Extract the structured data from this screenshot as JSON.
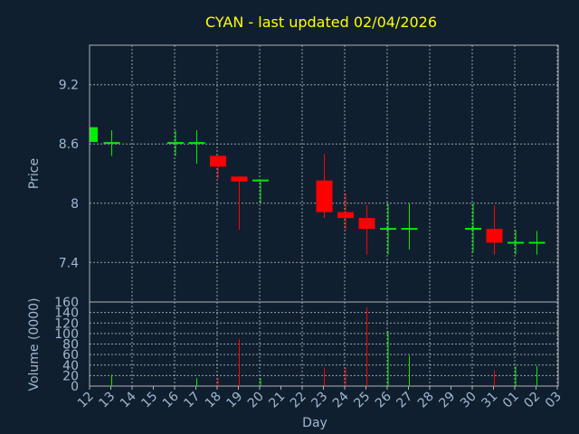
{
  "chart_data": {
    "type": "candlestick",
    "title": "CYAN - last updated 02/04/2026",
    "xlabel": "Day",
    "ylabel_price": "Price",
    "ylabel_volume": "Volume (0000)",
    "price_ylim": [
      7.0,
      9.6
    ],
    "price_ticks": [
      "9.2",
      "8.6",
      "8",
      "7.4"
    ],
    "volume_ylim": [
      0,
      160
    ],
    "volume_ticks": [
      "160",
      "140",
      "120",
      "100",
      "80",
      "60",
      "40",
      "20",
      "0"
    ],
    "x_ticks": [
      "12",
      "13",
      "14",
      "15",
      "16",
      "17",
      "18",
      "19",
      "20",
      "21",
      "22",
      "23",
      "24",
      "25",
      "26",
      "27",
      "28",
      "29",
      "30",
      "31",
      "01",
      "02",
      "03"
    ],
    "grid": true,
    "colors": {
      "background": "#0f1f30",
      "up": "#00ee00",
      "down": "#ff0000",
      "text": "#a0b8d0",
      "title": "#ffff00",
      "grid": "#c0c0c0"
    },
    "candles": [
      {
        "x": "12",
        "open": 8.62,
        "close": 8.77,
        "high": 8.77,
        "low": 8.62,
        "volume": 0
      },
      {
        "x": "13",
        "open": 8.61,
        "close": 8.61,
        "high": 8.74,
        "low": 8.48,
        "volume": 22
      },
      {
        "x": "16",
        "open": 8.61,
        "close": 8.61,
        "high": 8.74,
        "low": 8.48,
        "volume": 0
      },
      {
        "x": "17",
        "open": 8.61,
        "close": 8.61,
        "high": 8.74,
        "low": 8.4,
        "volume": 15
      },
      {
        "x": "18",
        "open": 8.48,
        "close": 8.37,
        "high": 8.48,
        "low": 8.25,
        "volume": 15
      },
      {
        "x": "19",
        "open": 8.27,
        "close": 8.22,
        "high": 8.27,
        "low": 7.73,
        "volume": 90
      },
      {
        "x": "20",
        "open": 8.23,
        "close": 8.23,
        "high": 8.23,
        "low": 8.0,
        "volume": 15
      },
      {
        "x": "23",
        "open": 8.23,
        "close": 7.91,
        "high": 8.5,
        "low": 7.85,
        "volume": 35
      },
      {
        "x": "24",
        "open": 7.91,
        "close": 7.85,
        "high": 8.1,
        "low": 7.73,
        "volume": 35
      },
      {
        "x": "25",
        "open": 7.85,
        "close": 7.74,
        "high": 7.98,
        "low": 7.48,
        "volume": 150
      },
      {
        "x": "26",
        "open": 7.74,
        "close": 7.74,
        "high": 8.0,
        "low": 7.48,
        "volume": 105
      },
      {
        "x": "27",
        "open": 7.74,
        "close": 7.74,
        "high": 8.0,
        "low": 7.53,
        "volume": 58
      },
      {
        "x": "30",
        "open": 7.74,
        "close": 7.74,
        "high": 8.0,
        "low": 7.5,
        "volume": 0
      },
      {
        "x": "31",
        "open": 7.74,
        "close": 7.6,
        "high": 7.98,
        "low": 7.48,
        "volume": 30
      },
      {
        "x": "01",
        "open": 7.6,
        "close": 7.6,
        "high": 7.73,
        "low": 7.48,
        "volume": 38
      },
      {
        "x": "02",
        "open": 7.6,
        "close": 7.6,
        "high": 7.72,
        "low": 7.48,
        "volume": 38
      }
    ]
  }
}
